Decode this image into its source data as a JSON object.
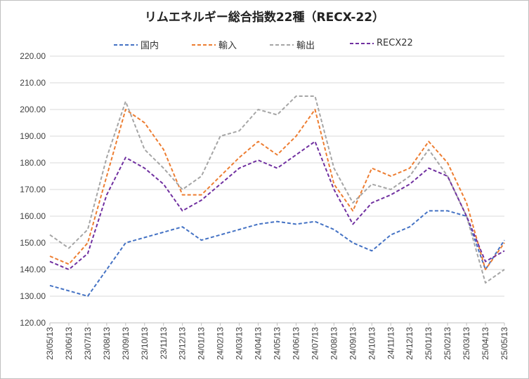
{
  "chart_data": {
    "type": "line",
    "title": "リムエネルギー総合指数22種（RECX-22）",
    "xlabel": "",
    "ylabel": "",
    "ylim": [
      120,
      220
    ],
    "yticks": [
      "120.00",
      "130.00",
      "140.00",
      "150.00",
      "160.00",
      "170.00",
      "180.00",
      "190.00",
      "200.00",
      "210.00",
      "220.00"
    ],
    "categories": [
      "23/05/13",
      "23/06/13",
      "23/07/13",
      "23/08/13",
      "23/09/13",
      "23/10/13",
      "23/11/13",
      "23/12/13",
      "24/01/13",
      "24/02/13",
      "24/03/13",
      "24/04/13",
      "24/05/13",
      "24/06/13",
      "24/07/13",
      "24/08/13",
      "24/09/13",
      "24/10/13",
      "24/11/13",
      "24/12/13",
      "25/01/13",
      "25/02/13",
      "25/03/13",
      "25/04/13",
      "25/05/13"
    ],
    "grid": true,
    "legend_position": "top",
    "series": [
      {
        "name": "国内",
        "color": "#4472c4",
        "values": [
          134,
          132,
          130,
          140,
          150,
          152,
          154,
          156,
          151,
          153,
          155,
          157,
          158,
          157,
          158,
          155,
          150,
          147,
          153,
          156,
          162,
          162,
          160,
          140,
          151
        ]
      },
      {
        "name": "輸入",
        "color": "#ed7d31",
        "values": [
          145,
          142,
          150,
          175,
          200,
          195,
          185,
          168,
          168,
          175,
          182,
          188,
          183,
          190,
          200,
          172,
          162,
          178,
          175,
          178,
          188,
          180,
          165,
          140,
          150
        ]
      },
      {
        "name": "輸出",
        "color": "#a5a5a5",
        "values": [
          153,
          148,
          155,
          182,
          203,
          185,
          178,
          170,
          175,
          190,
          192,
          200,
          198,
          205,
          205,
          178,
          165,
          172,
          170,
          175,
          185,
          175,
          160,
          135,
          140
        ]
      },
      {
        "name": "RECX22",
        "color": "#7030a0",
        "values": [
          143,
          140,
          146,
          168,
          182,
          178,
          172,
          162,
          166,
          172,
          178,
          181,
          178,
          183,
          188,
          170,
          157,
          165,
          168,
          172,
          178,
          175,
          160,
          143,
          147
        ]
      }
    ]
  }
}
